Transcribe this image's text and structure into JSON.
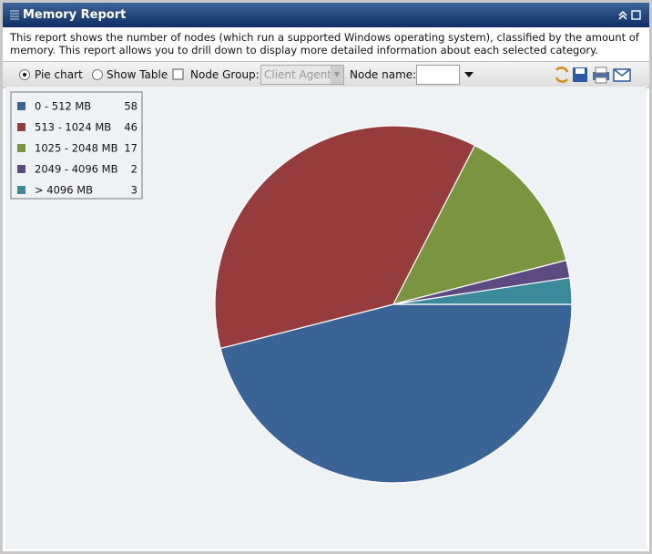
{
  "header": {
    "title": "Memory Report"
  },
  "description": [
    "This report shows the number of nodes (which run a supported Windows operating system), classified by the amount of",
    "memory. This report allows you to drill down to display more detailed information about each selected category."
  ],
  "toolbar": {
    "pie_chart": "Pie chart",
    "show_table": "Show Table",
    "node_group": "Node Group:",
    "node_group_value": "Client Agent",
    "node_name": "Node name:"
  },
  "chart_data": {
    "type": "pie",
    "categories": [
      "0 - 512 MB",
      "513 - 1024 MB",
      "1025 - 2048 MB",
      "2049 - 4096 MB",
      "> 4096 MB"
    ],
    "values": [
      58,
      46,
      17,
      2,
      3
    ],
    "colors": [
      "#3b6496",
      "#963c3c",
      "#7a9440",
      "#5c4a80",
      "#3a8a9a"
    ]
  }
}
